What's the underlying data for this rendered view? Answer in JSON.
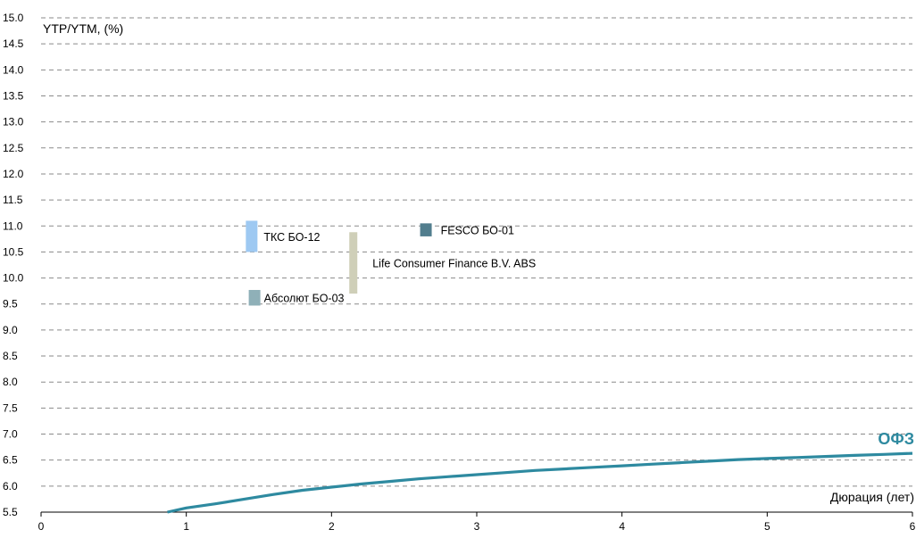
{
  "chart_data": {
    "type": "line",
    "ylabel": "YTP/YTM, (%)",
    "xlabel": "Дюрация (лет)",
    "xlim": [
      0,
      6
    ],
    "ylim": [
      5.5,
      15.0
    ],
    "x_ticks": [
      "0",
      "1",
      "2",
      "3",
      "4",
      "5",
      "6"
    ],
    "y_ticks": [
      "5.5",
      "6.0",
      "6.5",
      "7.0",
      "7.5",
      "8.0",
      "8.5",
      "9.0",
      "9.5",
      "10.0",
      "10.5",
      "11.0",
      "11.5",
      "12.0",
      "12.5",
      "13.0",
      "13.5",
      "14.0",
      "14.5",
      "15.0"
    ],
    "grid": "horizontal-dashed",
    "series": [
      {
        "name": "ОФЗ",
        "color": "#2e8aa0",
        "x": [
          0.87,
          1.0,
          1.2,
          1.4,
          1.6,
          1.8,
          2.0,
          2.2,
          2.4,
          2.6,
          2.8,
          3.0,
          3.2,
          3.4,
          3.6,
          3.8,
          4.0,
          4.2,
          4.4,
          4.6,
          4.8,
          5.0,
          5.2,
          5.4,
          5.6,
          5.8,
          6.0
        ],
        "y": [
          5.5,
          5.58,
          5.66,
          5.75,
          5.84,
          5.92,
          5.98,
          6.04,
          6.09,
          6.14,
          6.18,
          6.22,
          6.26,
          6.3,
          6.33,
          6.36,
          6.39,
          6.42,
          6.45,
          6.48,
          6.51,
          6.53,
          6.55,
          6.57,
          6.59,
          6.61,
          6.63
        ]
      }
    ],
    "bonds": [
      {
        "name": "ТКС БО-12",
        "x": 1.45,
        "y_low": 10.5,
        "y_high": 11.1,
        "color": "#9ec9f2"
      },
      {
        "name": "Абсолют БО-03",
        "x": 1.47,
        "y_low": 9.47,
        "y_high": 9.77,
        "color": "#8fb0b8"
      },
      {
        "name": "Life Consumer Finance B.V. ABS",
        "x": 2.15,
        "y_low": 9.7,
        "y_high": 10.88,
        "color": "#cfcfb8"
      },
      {
        "name": "FESCO БО-01",
        "x": 2.65,
        "y_low": 10.8,
        "y_high": 11.05,
        "color": "#527e8e"
      }
    ]
  }
}
